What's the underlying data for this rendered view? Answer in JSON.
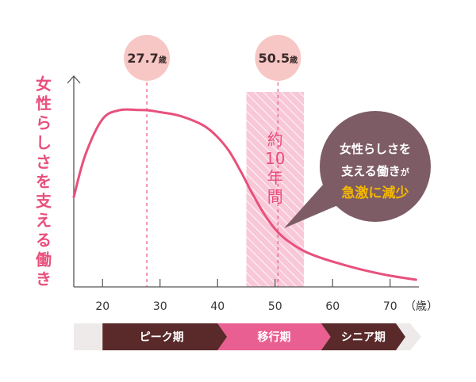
{
  "chart_data": {
    "type": "line",
    "ylabel": "女性らしさを支える働き",
    "xunit": "（歳）",
    "xlim": [
      15,
      75
    ],
    "xticks": [
      20,
      30,
      40,
      50,
      60,
      70
    ],
    "ylim": [
      0,
      100
    ],
    "series": [
      {
        "name": "女性らしさを支える働き",
        "x": [
          15,
          17,
          20,
          23,
          26,
          28,
          30,
          33,
          36,
          38,
          40,
          42,
          44,
          46,
          48,
          50,
          52,
          55,
          58,
          62,
          66,
          70,
          74.5
        ],
        "y": [
          45,
          66,
          84,
          88.5,
          88.6,
          88.4,
          87.5,
          86,
          83,
          80,
          75,
          68,
          58,
          47,
          37,
          29,
          23.5,
          18,
          14.5,
          11,
          8,
          5.6,
          3.6
        ]
      }
    ],
    "markers": [
      {
        "x": 27.7,
        "label": "27.7",
        "unit": "歳",
        "color": "#f7c7c5"
      },
      {
        "x": 50.5,
        "label": "50.5",
        "unit": "歳",
        "color": "#f7c7c5"
      }
    ],
    "shaded_band": {
      "x_start": 45,
      "x_end": 55,
      "label_lines": [
        "約",
        "10",
        "年",
        "間"
      ]
    },
    "callout": {
      "line1": "女性らしさを",
      "line2_main": "支える働き",
      "line2_suffix": "が",
      "line3": "急激に減少",
      "bg_color": "#7d5c66",
      "highlight_color": "#f5b800"
    },
    "phases": [
      {
        "label": "ピーク期",
        "x_start": 20,
        "x_end": 40,
        "color": "#5a2a2a"
      },
      {
        "label": "移行期",
        "x_start": 40,
        "x_end": 58,
        "color": "#ea5f91"
      },
      {
        "label": "シニア期",
        "x_start": 58,
        "x_end": 71,
        "color": "#5a2a2a"
      }
    ],
    "colors": {
      "line": "#e8507c",
      "axis": "#555555",
      "ylabel": "#e8507c",
      "phase_bar_bg": "#eeeaea",
      "band_fill": "#f8c8d8",
      "band_text": "#e8507c"
    }
  }
}
